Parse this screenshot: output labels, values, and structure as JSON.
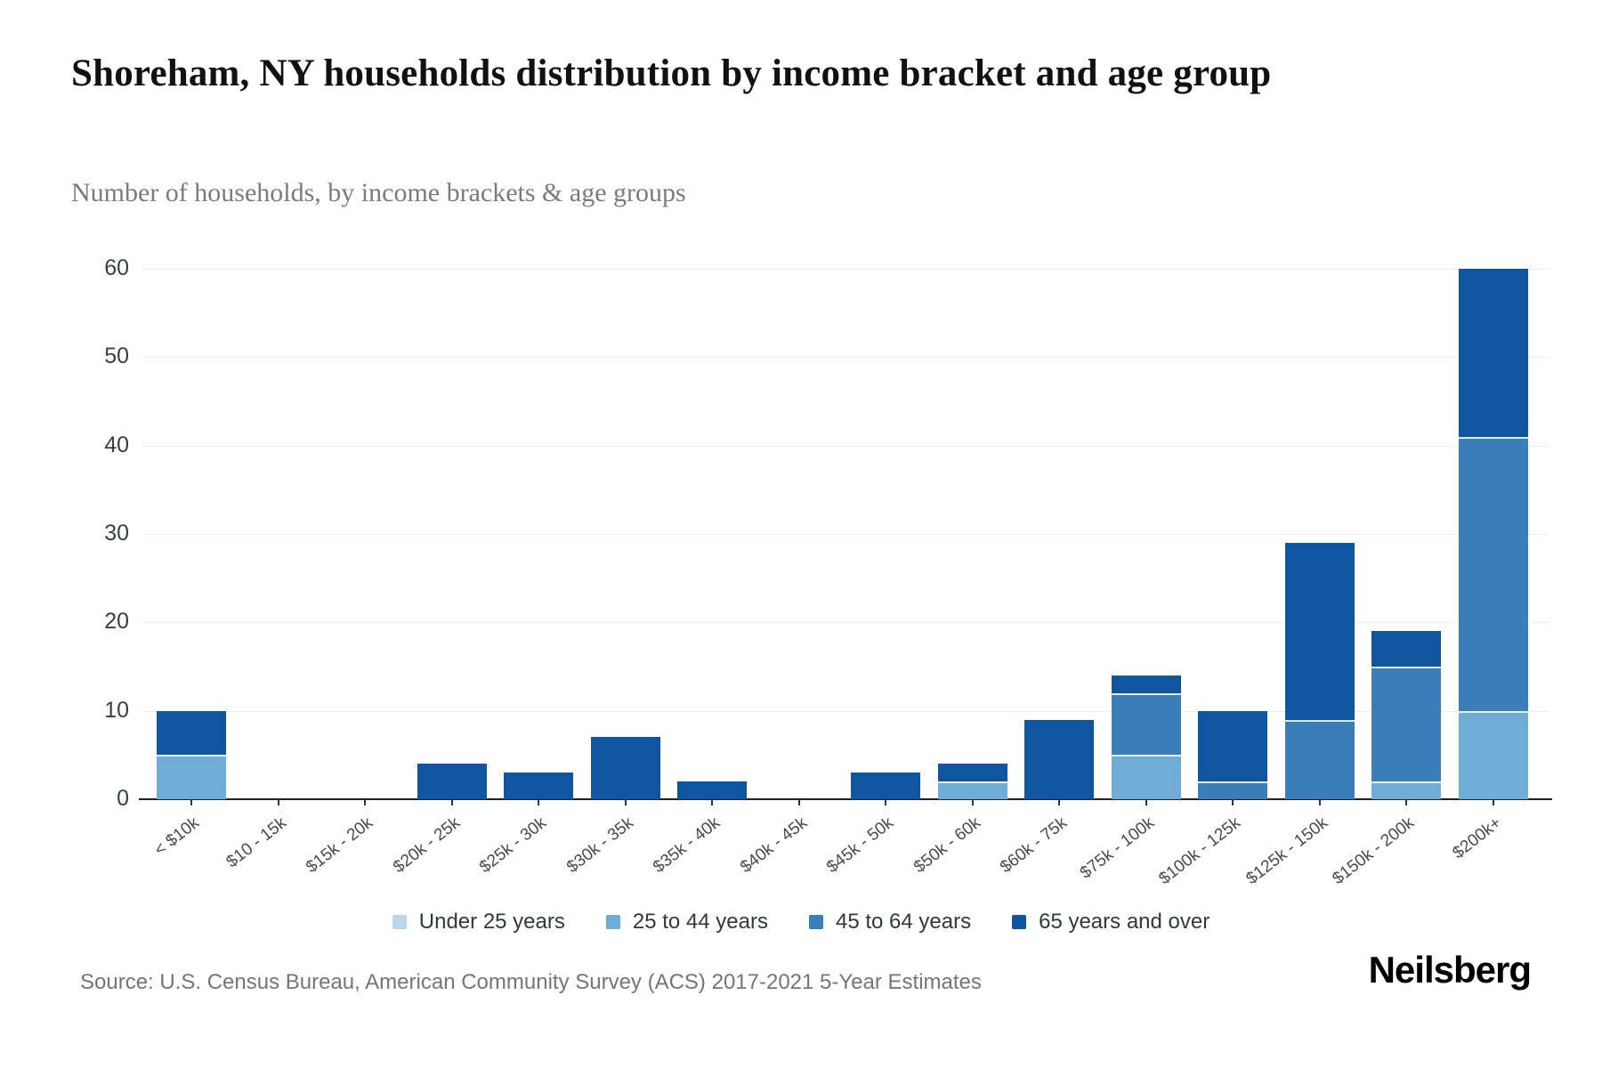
{
  "header": {
    "title": "Shoreham, NY households distribution by income bracket and age group",
    "subtitle": "Number of households, by income brackets & age groups"
  },
  "chart_data": {
    "type": "bar",
    "stacked": true,
    "title": "Shoreham, NY households distribution by income bracket and age group",
    "subtitle": "Number of households, by income brackets & age groups",
    "xlabel": "",
    "ylabel": "",
    "ylim": [
      0,
      60
    ],
    "yticks": [
      0,
      10,
      20,
      30,
      40,
      50,
      60
    ],
    "grid": true,
    "legend_position": "bottom",
    "categories": [
      "< $10k",
      "$10 - 15k",
      "$15k - 20k",
      "$20k - 25k",
      "$25k - 30k",
      "$30k - 35k",
      "$35k - 40k",
      "$40k - 45k",
      "$45k - 50k",
      "$50k - 60k",
      "$60k - 75k",
      "$75k - 100k",
      "$100k - 125k",
      "$125k - 150k",
      "$150k - 200k",
      "$200k+"
    ],
    "series": [
      {
        "name": "Under 25 years",
        "color": "#b9d6ea",
        "values": [
          0,
          0,
          0,
          0,
          0,
          0,
          0,
          0,
          0,
          0,
          0,
          0,
          0,
          0,
          0,
          0
        ]
      },
      {
        "name": "25 to 44 years",
        "color": "#6fadd6",
        "values": [
          5,
          0,
          0,
          0,
          0,
          0,
          0,
          0,
          0,
          2,
          0,
          5,
          0,
          0,
          2,
          10
        ]
      },
      {
        "name": "45 to 64 years",
        "color": "#3a7fba",
        "values": [
          0,
          0,
          0,
          0,
          0,
          0,
          0,
          0,
          0,
          0,
          0,
          7,
          2,
          9,
          13,
          31
        ]
      },
      {
        "name": "65 years and over",
        "color": "#0f55a0",
        "values": [
          5,
          0,
          0,
          4,
          3,
          7,
          2,
          0,
          3,
          2,
          9,
          2,
          8,
          20,
          4,
          19
        ]
      }
    ],
    "totals": [
      10,
      0,
      0,
      4,
      3,
      7,
      2,
      0,
      3,
      4,
      9,
      14,
      10,
      29,
      19,
      60
    ]
  },
  "footer": {
    "source": "Source: U.S. Census Bureau, American Community Survey (ACS) 2017-2021 5-Year Estimates",
    "brand": "Neilsberg"
  }
}
